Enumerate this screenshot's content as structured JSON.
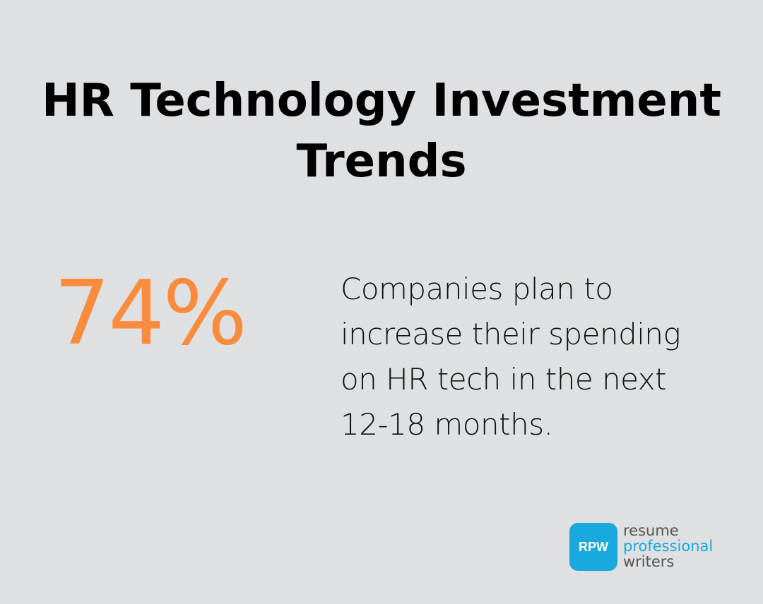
{
  "title": {
    "line1": "HR Technology Investment",
    "line2": "Trends"
  },
  "stat": {
    "value": "74%",
    "description_lines": [
      "Companies plan to",
      "increase their spending",
      "on HR tech in the next",
      "12-18 months."
    ]
  },
  "logo": {
    "badge": "RPW",
    "line1": "resume",
    "line2": "professional",
    "line3": "writers"
  },
  "colors": {
    "background": "#dfe0e1",
    "accent_orange": "#fb8c3d",
    "brand_blue": "#1aa9df",
    "logo_gray": "#555555"
  }
}
